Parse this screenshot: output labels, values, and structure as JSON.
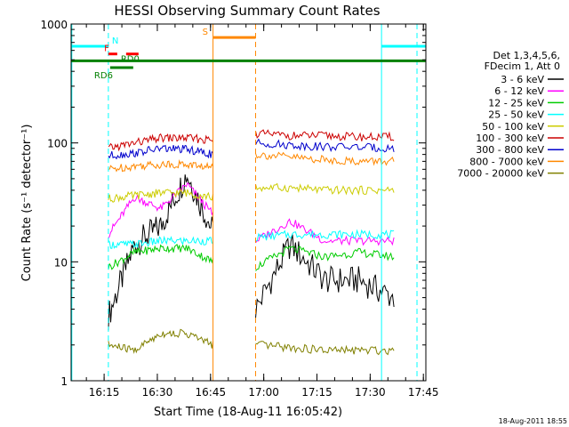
{
  "chart_data": {
    "type": "line",
    "title": "HESSI Observing Summary Count Rates",
    "xlabel": "Start Time (18-Aug-11 16:05:42)",
    "ylabel": "Count Rate (s⁻¹ detector⁻¹)",
    "x_unit": "minutes from 16:05:42",
    "xlim": [
      0,
      100
    ],
    "ylim": [
      1,
      1000
    ],
    "yscale": "log",
    "grid": false,
    "x_ticks": [
      {
        "label": "16:15",
        "x": 9.3
      },
      {
        "label": "16:30",
        "x": 24.3
      },
      {
        "label": "16:45",
        "x": 39.3
      },
      {
        "label": "17:00",
        "x": 54.3
      },
      {
        "label": "17:15",
        "x": 69.3
      },
      {
        "label": "17:30",
        "x": 84.3
      },
      {
        "label": "17:45",
        "x": 99.3
      }
    ],
    "y_ticks": [
      {
        "label": "1",
        "y": 1
      },
      {
        "label": "10",
        "y": 10
      },
      {
        "label": "100",
        "y": 100
      },
      {
        "label": "1000",
        "y": 1000
      }
    ],
    "legend_header": [
      "Det 1,3,4,5,6,",
      "FDecim 1, Att 0"
    ],
    "legend_position": "right",
    "series": [
      {
        "name": "3 - 6 keV",
        "color": "#000000",
        "seg1": [
          3.5,
          14,
          20,
          55,
          18
        ],
        "seg2": [
          4,
          14,
          7,
          7,
          5
        ]
      },
      {
        "name": "6 - 12 keV",
        "color": "#ff00ff",
        "seg1": [
          17,
          35,
          28,
          45,
          25
        ],
        "seg2": [
          15,
          22,
          15,
          15,
          15
        ]
      },
      {
        "name": "12 - 25 keV",
        "color": "#00cc00",
        "seg1": [
          9,
          12,
          13,
          13,
          10
        ],
        "seg2": [
          9,
          13,
          11,
          12,
          11
        ]
      },
      {
        "name": "25 - 50 keV",
        "color": "#00ffff",
        "seg1": [
          14,
          14,
          15,
          15,
          15
        ],
        "seg2": [
          16,
          17,
          17,
          17,
          17
        ]
      },
      {
        "name": "50 - 100 keV",
        "color": "#cccc00",
        "seg1": [
          34,
          36,
          38,
          38,
          35
        ],
        "seg2": [
          42,
          42,
          40,
          40,
          40
        ]
      },
      {
        "name": "100 - 300 keV",
        "color": "#cc0000",
        "seg1": [
          90,
          100,
          110,
          110,
          105
        ],
        "seg2": [
          120,
          115,
          115,
          112,
          112
        ]
      },
      {
        "name": "300 - 800 keV",
        "color": "#0000cc",
        "seg1": [
          78,
          82,
          90,
          88,
          80
        ],
        "seg2": [
          100,
          96,
          93,
          92,
          90
        ]
      },
      {
        "name": "800 - 7000 keV",
        "color": "#ff8800",
        "seg1": [
          60,
          64,
          66,
          66,
          62
        ],
        "seg2": [
          80,
          76,
          72,
          70,
          70
        ]
      },
      {
        "name": "7000 - 20000 keV",
        "color": "#808000",
        "seg1": [
          2,
          1.8,
          2.5,
          2.5,
          2
        ],
        "seg2": [
          2,
          1.9,
          1.8,
          1.8,
          1.8
        ]
      }
    ],
    "data_gaps_x": [
      [
        39,
        51
      ],
      [
        97,
        100
      ]
    ],
    "segments_x": [
      [
        10.5,
        40
      ],
      [
        52,
        91
      ]
    ],
    "vertical_markers": [
      {
        "x": 0.2,
        "color": "#00ffff",
        "style": "solid"
      },
      {
        "x": 10.5,
        "color": "#00ffff",
        "style": "dashed"
      },
      {
        "x": 40,
        "color": "#ff8800",
        "style": "solid"
      },
      {
        "x": 52,
        "color": "#ff8800",
        "style": "dashed"
      },
      {
        "x": 87.5,
        "color": "#00ffff",
        "style": "solid"
      },
      {
        "x": 97.5,
        "color": "#00ffff",
        "style": "dashed"
      }
    ],
    "flag_bars": [
      {
        "label": "N",
        "color": "#00ffff",
        "y": 650,
        "ranges": [
          [
            0.2,
            10.5
          ],
          [
            87.5,
            100
          ]
        ],
        "label_x": 11.5
      },
      {
        "label": "S",
        "color": "#ff8800",
        "y": 770,
        "ranges": [
          [
            40,
            52
          ]
        ],
        "label_x": 37
      },
      {
        "label": "F",
        "color": "#ff0000",
        "y": 560,
        "ranges": [
          [
            10.5,
            13
          ],
          [
            15.5,
            19
          ]
        ],
        "label_x": 9.3
      },
      {
        "label": "RD0",
        "color": "#008000",
        "y": 490,
        "ranges": [
          [
            0,
            100
          ]
        ],
        "label_x": 14
      },
      {
        "label": "RD6",
        "color": "#008000",
        "y": 430,
        "ranges": [
          [
            11,
            17.5
          ]
        ],
        "label_x": 6.5
      }
    ]
  },
  "footer": {
    "date_stamp": "18-Aug-2011 18:55"
  }
}
